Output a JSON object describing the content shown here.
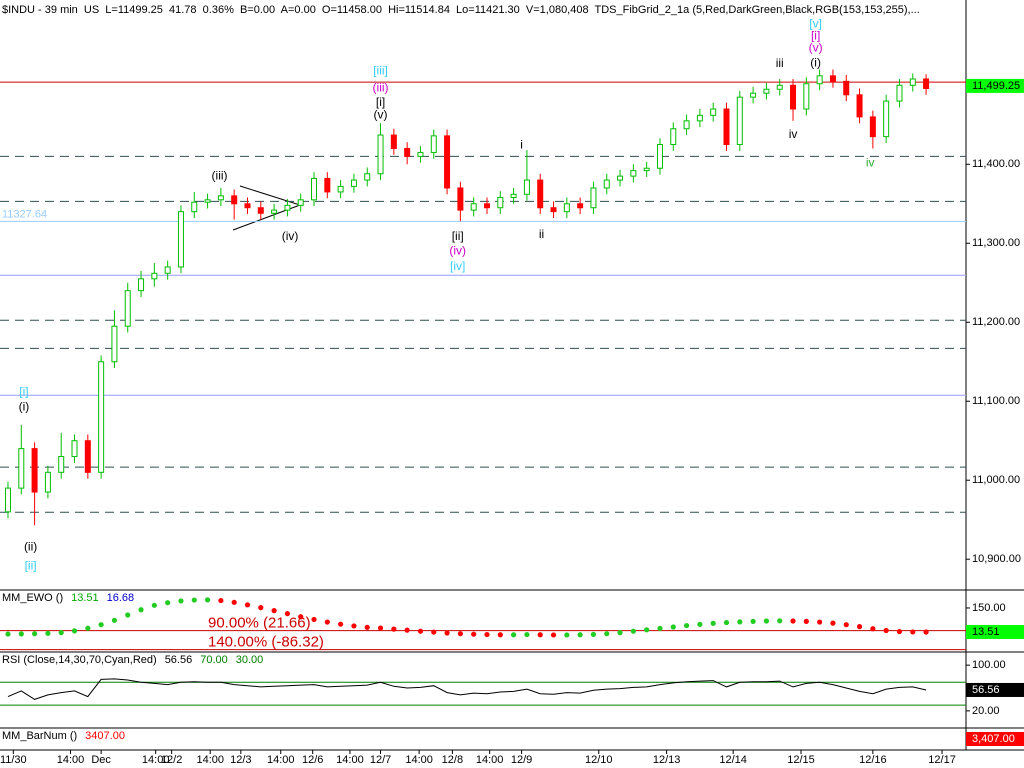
{
  "chart_data": [
    {
      "type": "candlestick",
      "header": "$INDU - 39 min  US  L=11499.25  41.78  0.36%  B=0.00  A=0.00  O=11458.00  Hi=11514.84  Lo=11421.30  V=1,080,408  TDS_FibGrid_2_1a (5,Red,DarkGreen,Black,RGB(153,153,255),...",
      "xlim": [
        -0.6,
        72
      ],
      "ylim": [
        10861,
        11608
      ],
      "yticks": [
        {
          "value": 10900,
          "label": "10,900.00"
        },
        {
          "value": 11000,
          "label": "11,000.00"
        },
        {
          "value": 11100,
          "label": "11,100.00"
        },
        {
          "value": 11200,
          "label": "11,200.00"
        },
        {
          "value": 11300,
          "label": "11,300.00"
        },
        {
          "value": 11400,
          "label": "11,400.00"
        }
      ],
      "xticks": [
        {
          "value": 0.4,
          "label": "11/30"
        },
        {
          "value": 4.7,
          "label": "14:00"
        },
        {
          "value": 7.0,
          "label": "Dec"
        },
        {
          "value": 11.1,
          "label": "14:00"
        },
        {
          "value": 12.3,
          "label": "12/2"
        },
        {
          "value": 15.2,
          "label": "14:00"
        },
        {
          "value": 17.5,
          "label": "12/3"
        },
        {
          "value": 20.5,
          "label": "14:00"
        },
        {
          "value": 22.9,
          "label": "12/6"
        },
        {
          "value": 25.7,
          "label": "14:00"
        },
        {
          "value": 28.0,
          "label": "12/7"
        },
        {
          "value": 30.9,
          "label": "14:00"
        },
        {
          "value": 33.4,
          "label": "12/8"
        },
        {
          "value": 36.2,
          "label": "14:00"
        },
        {
          "value": 38.6,
          "label": "12/9"
        },
        {
          "value": 44.4,
          "label": "12/10"
        },
        {
          "value": 49.5,
          "label": "12/13"
        },
        {
          "value": 54.5,
          "label": "12/14"
        },
        {
          "value": 59.6,
          "label": "12/15"
        },
        {
          "value": 65.0,
          "label": "12/16"
        },
        {
          "value": 70.2,
          "label": "12/17"
        }
      ],
      "colors": {
        "up": "#00c000",
        "down": "#ff0000"
      },
      "open": [
        10960,
        10990,
        11040,
        10985,
        11010,
        11030,
        11050,
        11010,
        11150,
        11195,
        11240,
        11255,
        11262,
        11270,
        11340,
        11352,
        11355,
        11360,
        11350,
        11345,
        11338,
        11342,
        11348,
        11355,
        11382,
        11365,
        11372,
        11380,
        11388,
        11437,
        11420,
        11410,
        11415,
        11436,
        11370,
        11342,
        11350,
        11345,
        11358,
        11362,
        11380,
        11345,
        11340,
        11350,
        11345,
        11370,
        11380,
        11385,
        11392,
        11395,
        11425,
        11445,
        11455,
        11462,
        11470,
        11425,
        11485,
        11490,
        11495,
        11500,
        11470,
        11502,
        11512,
        11505,
        11488,
        11460,
        11435,
        11480,
        11500,
        11508
      ],
      "high": [
        10998,
        11070,
        11048,
        11018,
        11060,
        11058,
        11058,
        11158,
        11215,
        11250,
        11265,
        11275,
        11278,
        11348,
        11365,
        11363,
        11370,
        11368,
        11358,
        11353,
        11350,
        11356,
        11363,
        11390,
        11390,
        11380,
        11388,
        11396,
        11452,
        11445,
        11428,
        11423,
        11444,
        11444,
        11378,
        11358,
        11358,
        11366,
        11370,
        11418,
        11388,
        11353,
        11358,
        11358,
        11378,
        11388,
        11393,
        11400,
        11403,
        11433,
        11453,
        11463,
        11470,
        11478,
        11478,
        11493,
        11498,
        11503,
        11508,
        11508,
        11510,
        11520,
        11520,
        11513,
        11496,
        11468,
        11488,
        11508,
        11515,
        11514
      ],
      "low": [
        10952,
        10982,
        10943,
        10977,
        11002,
        11022,
        11002,
        11002,
        11142,
        11187,
        11232,
        11245,
        11254,
        11262,
        11332,
        11344,
        11347,
        11330,
        11337,
        11330,
        11330,
        11334,
        11340,
        11347,
        11357,
        11357,
        11364,
        11372,
        11380,
        11412,
        11400,
        11402,
        11407,
        11362,
        11328,
        11334,
        11337,
        11337,
        11350,
        11354,
        11337,
        11332,
        11332,
        11337,
        11337,
        11362,
        11372,
        11377,
        11384,
        11387,
        11417,
        11437,
        11447,
        11454,
        11417,
        11417,
        11477,
        11482,
        11487,
        11455,
        11462,
        11494,
        11497,
        11480,
        11452,
        11420,
        11427,
        11472,
        11492,
        11488
      ],
      "close": [
        10990,
        11040,
        10985,
        11010,
        11030,
        11050,
        11010,
        11150,
        11195,
        11240,
        11255,
        11262,
        11270,
        11340,
        11352,
        11355,
        11360,
        11350,
        11345,
        11338,
        11342,
        11348,
        11355,
        11382,
        11365,
        11372,
        11380,
        11388,
        11437,
        11420,
        11410,
        11415,
        11436,
        11370,
        11342,
        11350,
        11345,
        11358,
        11362,
        11380,
        11345,
        11340,
        11350,
        11345,
        11370,
        11380,
        11385,
        11392,
        11395,
        11425,
        11445,
        11455,
        11462,
        11470,
        11425,
        11485,
        11490,
        11495,
        11500,
        11470,
        11502,
        11512,
        11505,
        11488,
        11460,
        11435,
        11480,
        11500,
        11508,
        11496
      ],
      "levels": [
        {
          "value": 11504,
          "color": "#cc0000",
          "style": "solid"
        },
        {
          "value": 11410,
          "color": "#2f4f4f",
          "style": "dashed"
        },
        {
          "value": 11353,
          "color": "#2f4f4f",
          "style": "dashed"
        },
        {
          "value": 11327.64,
          "label": "11327.64",
          "color": "#99ccff",
          "style": "solid"
        },
        {
          "value": 11259.5,
          "color": "#9999ff",
          "style": "solid"
        },
        {
          "value": 11202.5,
          "color": "#2f4f4f",
          "style": "dashed"
        },
        {
          "value": 11167,
          "color": "#2f4f4f",
          "style": "dashed"
        },
        {
          "value": 11107.6,
          "color": "#9999ff",
          "style": "solid"
        },
        {
          "value": 11016.5,
          "color": "#2f4f4f",
          "style": "dashed"
        },
        {
          "value": 10959.5,
          "color": "#2f4f4f",
          "style": "dashed"
        }
      ],
      "annotations": [
        {
          "text": "(iii)",
          "color": "#000000",
          "x": 15.9,
          "y": 11385
        },
        {
          "text": "(iv)",
          "color": "#000000",
          "x": 21.2,
          "y": 11308
        },
        {
          "text": "[iii]",
          "color": "#33ccff",
          "x": 28.0,
          "y": 11518
        },
        {
          "text": "(iii)",
          "color": "#cc00cc",
          "x": 28.0,
          "y": 11496
        },
        {
          "text": "[i]",
          "color": "#000000",
          "x": 28.0,
          "y": 11478
        },
        {
          "text": "(v)",
          "color": "#000000",
          "x": 28.0,
          "y": 11462
        },
        {
          "text": "i",
          "color": "#000000",
          "x": 38.6,
          "y": 11424
        },
        {
          "text": "ii",
          "color": "#000000",
          "x": 40.1,
          "y": 11311
        },
        {
          "text": "[ii]",
          "color": "#000000",
          "x": 33.8,
          "y": 11308
        },
        {
          "text": "(iv)",
          "color": "#cc00cc",
          "x": 33.8,
          "y": 11290
        },
        {
          "text": "[iv]",
          "color": "#33ccff",
          "x": 33.8,
          "y": 11270
        },
        {
          "text": "iii",
          "color": "#000000",
          "x": 58.0,
          "y": 11527
        },
        {
          "text": "iv",
          "color": "#000000",
          "x": 59.0,
          "y": 11437
        },
        {
          "text": "[v]",
          "color": "#33ccff",
          "x": 60.7,
          "y": 11577
        },
        {
          "text": "[i]",
          "color": "#cc00cc",
          "x": 60.7,
          "y": 11562
        },
        {
          "text": "(v)",
          "color": "#cc00cc",
          "x": 60.7,
          "y": 11547
        },
        {
          "text": "(i)",
          "color": "#000000",
          "x": 60.7,
          "y": 11528
        },
        {
          "text": "iv",
          "color": "#33aa33",
          "x": 64.8,
          "y": 11401
        },
        {
          "text": "[i]",
          "color": "#33ccff",
          "x": 1.2,
          "y": 11111
        },
        {
          "text": "(i)",
          "color": "#000000",
          "x": 1.2,
          "y": 11092
        },
        {
          "text": "(ii)",
          "color": "#000000",
          "x": 1.7,
          "y": 10915
        },
        {
          "text": "[ii]",
          "color": "#33ccff",
          "x": 1.7,
          "y": 10891
        }
      ],
      "box": {
        "value": 11499.25,
        "label": "11,499.25",
        "bg": "#00ff00",
        "fg": "#000000"
      }
    },
    {
      "type": "dots",
      "ylim": [
        -100,
        252
      ],
      "yticks": [
        {
          "value": 150,
          "label": "150.00"
        }
      ],
      "legend": [
        {
          "text": "MM_EWO ()",
          "color": "#000000"
        },
        {
          "text": "13.51",
          "color": "#00aa00"
        },
        {
          "text": "16.68",
          "color": "#0000cc"
        }
      ],
      "colors": {
        "up": "#22cc22",
        "down": "#ff0000"
      },
      "values": [
        2,
        3,
        4,
        6,
        10,
        20,
        35,
        55,
        80,
        110,
        140,
        165,
        180,
        190,
        195,
        196,
        192,
        182,
        168,
        152,
        135,
        118,
        100,
        85,
        70,
        58,
        48,
        40,
        36,
        30,
        24,
        18,
        13,
        8,
        4,
        1,
        -1,
        -2,
        -2,
        -1,
        -2,
        -3,
        -3,
        -2,
        0,
        4,
        10,
        18,
        26,
        34,
        42,
        50,
        57,
        63,
        67,
        71,
        74,
        76,
        77,
        76,
        74,
        70,
        64,
        55,
        44,
        32,
        22,
        16,
        14,
        13.51
      ],
      "level_label_at": "line",
      "levels": [
        {
          "value": 21.66,
          "label": "90.00% (21.66)",
          "color": "#cc0000",
          "style": "solid"
        },
        {
          "value": -86.32,
          "label": "140.00% (-86.32)",
          "color": "#cc0000",
          "style": "solid"
        }
      ],
      "box": {
        "value": 13.51,
        "label": "13.51",
        "bg": "#00ff00",
        "fg": "#000000"
      }
    },
    {
      "type": "line",
      "ylim": [
        -10,
        123
      ],
      "yticks": [
        {
          "value": 100,
          "label": "100.00"
        },
        {
          "value": 20,
          "label": "20.00"
        }
      ],
      "legend": [
        {
          "text": "RSI (Close,14,30,70,Cyan,Red)",
          "color": "#000000"
        },
        {
          "text": "56.56",
          "color": "#000000"
        }
      ],
      "color": "#000000",
      "values": [
        45,
        55,
        40,
        48,
        52,
        55,
        45,
        75,
        76,
        74,
        70,
        68,
        66,
        70,
        71,
        70,
        70,
        66,
        64,
        62,
        63,
        64,
        65,
        66,
        62,
        63,
        64,
        65,
        70,
        63,
        60,
        61,
        64,
        52,
        48,
        51,
        50,
        53,
        54,
        58,
        50,
        49,
        52,
        51,
        56,
        58,
        59,
        61,
        62,
        66,
        69,
        71,
        72,
        73,
        62,
        70,
        71,
        71,
        72,
        62,
        68,
        70,
        66,
        60,
        54,
        50,
        58,
        61,
        62,
        56.56
      ],
      "level_label_at": "legend",
      "levels": [
        {
          "value": 70,
          "label": "70.00",
          "color": "#008000",
          "style": "solid"
        },
        {
          "value": 30,
          "label": "30.00",
          "color": "#008000",
          "style": "solid"
        }
      ],
      "box": {
        "value": 56.56,
        "label": "56.56",
        "bg": "#000000",
        "fg": "#ffffff"
      }
    },
    {
      "type": "counter",
      "legend": [
        {
          "text": "MM_BarNum ()",
          "color": "#000000"
        },
        {
          "text": "3407.00",
          "color": "#ff0000"
        }
      ],
      "box": {
        "label": "3,407.00",
        "bg": "#ff0000",
        "fg": "#ffffff"
      }
    }
  ]
}
